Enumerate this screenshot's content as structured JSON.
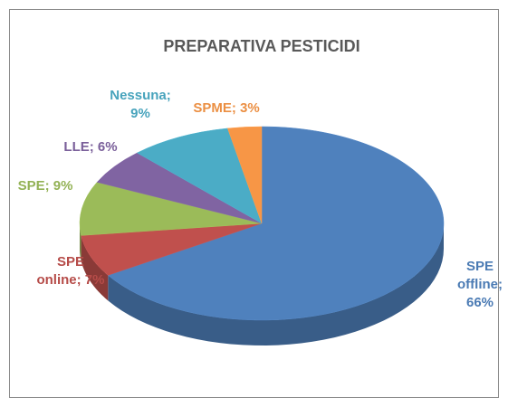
{
  "chart_data": {
    "type": "pie3d",
    "title": "PREPARATIVA PESTICIDI",
    "values": [
      66,
      7,
      9,
      6,
      9,
      3
    ],
    "value_labels": [
      "SPE offline; 66%",
      "SPE online; 7%",
      "SPE; 9%",
      "LLE; 6%",
      "Nessuna; 9%",
      "SPME; 3%"
    ],
    "colors": [
      "#4f81bd",
      "#c0504d",
      "#9bbb59",
      "#8064a2",
      "#4bacc6",
      "#f79646"
    ]
  }
}
